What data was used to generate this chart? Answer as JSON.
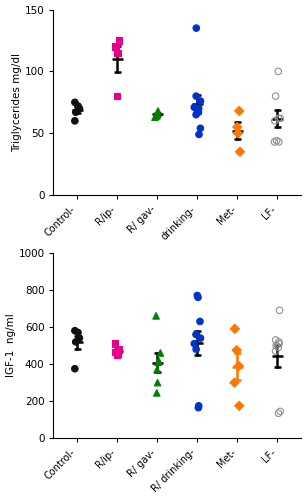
{
  "trig_categories": [
    "Control-",
    "R/ip-",
    "R/ gav-",
    "drinking-",
    "Met-",
    "LF-"
  ],
  "igf1_categories": [
    "Control-",
    "R/ip-",
    "R/ gav-",
    "R/ drinking-",
    "Met-",
    "LF-"
  ],
  "trig_data": [
    [
      60,
      67,
      70,
      72,
      75
    ],
    [
      80,
      115,
      120,
      125
    ],
    [
      63,
      64,
      65,
      66,
      68
    ],
    [
      49,
      54,
      65,
      67,
      70,
      70,
      71,
      76,
      80,
      135
    ],
    [
      35,
      50,
      55,
      68
    ],
    [
      43,
      43,
      44,
      60,
      62,
      62,
      80,
      100
    ]
  ],
  "igf1_data": [
    [
      375,
      520,
      540,
      570,
      580
    ],
    [
      450,
      458,
      465,
      480,
      510
    ],
    [
      245,
      300,
      370,
      410,
      415,
      460,
      660
    ],
    [
      165,
      175,
      480,
      510,
      540,
      560,
      560,
      630,
      760,
      770
    ],
    [
      175,
      300,
      390,
      475,
      590
    ],
    [
      135,
      145,
      470,
      490,
      500,
      510,
      520,
      530,
      690
    ]
  ],
  "colors": [
    "#111111",
    "#e8008a",
    "#008000",
    "#0033cc",
    "#ff7700",
    "#909090"
  ],
  "markers": [
    "o",
    "s",
    "^",
    "o",
    "D",
    "o"
  ],
  "filled": [
    true,
    true,
    true,
    true,
    true,
    false
  ],
  "trig_ylim": [
    0,
    150
  ],
  "trig_yticks": [
    0,
    50,
    100,
    150
  ],
  "igf1_ylim": [
    0,
    1000
  ],
  "igf1_yticks": [
    0,
    200,
    400,
    600,
    800,
    1000
  ],
  "trig_ylabel": "Triglycerides mg/dl",
  "igf1_ylabel": "IGF-1  ng/ml",
  "background_color": "#ffffff",
  "errorbar_color": "#000000",
  "met_igf1_errorbar_color": "#ff7700"
}
